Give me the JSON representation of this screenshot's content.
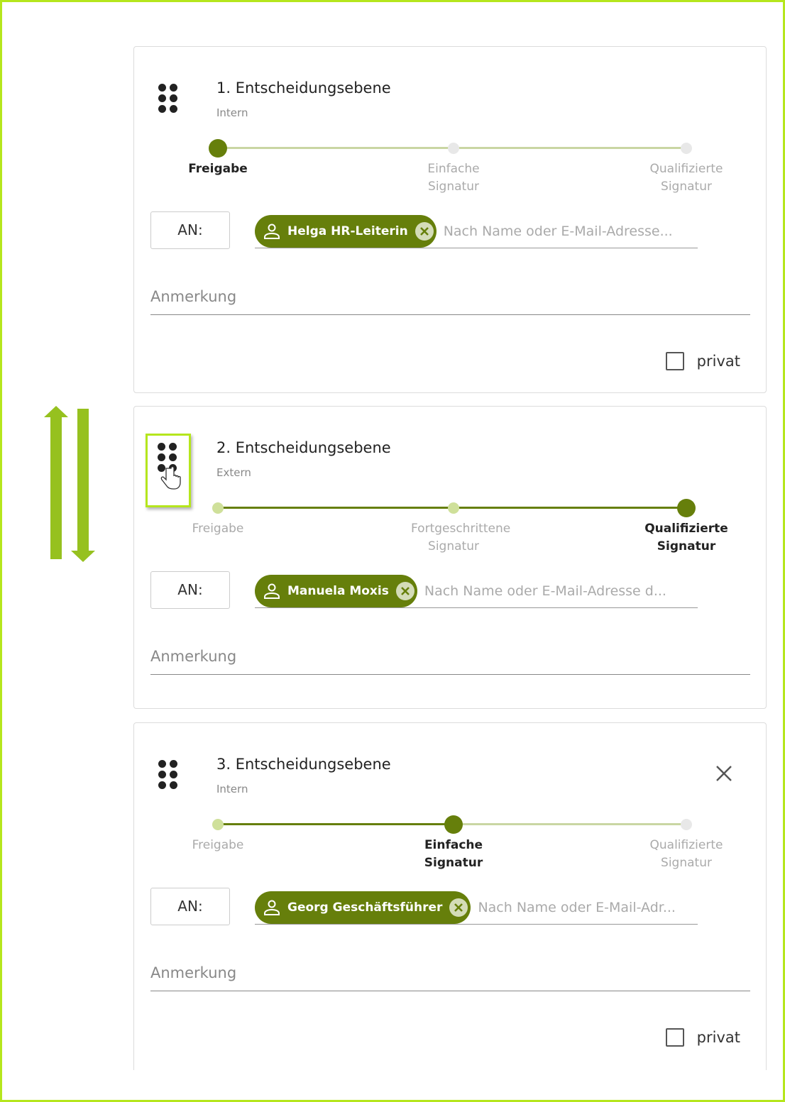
{
  "colors": {
    "accent": "#667f0b",
    "accent_light": "#cfe09a",
    "inactive": "#e8e8e8",
    "highlight": "#b5e61d",
    "arrow": "#96c11f"
  },
  "reorder_arrows": {
    "icon": "up-down-arrows-icon"
  },
  "cards": [
    {
      "title": "1. Entscheidungsebene",
      "subtitle": "Intern",
      "active_step": 0,
      "steps": [
        "Freigabe",
        "Einfache Signatur",
        "Qualifizierte Signatur"
      ],
      "to_label": "AN:",
      "recipient": "Helga HR-Leiterin",
      "placeholder": "Nach Name oder E-Mail-Adresse...",
      "note_placeholder": "Anmerkung",
      "private_label": "privat",
      "private_checked": false,
      "has_private": true,
      "has_close": false,
      "dragging": false
    },
    {
      "title": "2. Entscheidungsebene",
      "subtitle": "Extern",
      "active_step": 2,
      "steps": [
        "Freigabe",
        "Fortgeschrittene Signatur",
        "Qualifizierte Signatur"
      ],
      "to_label": "AN:",
      "recipient": "Manuela Moxis",
      "placeholder": "Nach Name oder E-Mail-Adresse d...",
      "note_placeholder": "Anmerkung",
      "has_private": false,
      "has_close": false,
      "dragging": true
    },
    {
      "title": "3. Entscheidungsebene",
      "subtitle": "Intern",
      "active_step": 1,
      "steps": [
        "Freigabe",
        "Einfache Signatur",
        "Qualifizierte Signatur"
      ],
      "to_label": "AN:",
      "recipient": "Georg Geschäftsführer",
      "placeholder": "Nach Name oder E-Mail-Adr...",
      "note_placeholder": "Anmerkung",
      "private_label": "privat",
      "private_checked": false,
      "has_private": true,
      "has_close": true,
      "dragging": false
    }
  ]
}
